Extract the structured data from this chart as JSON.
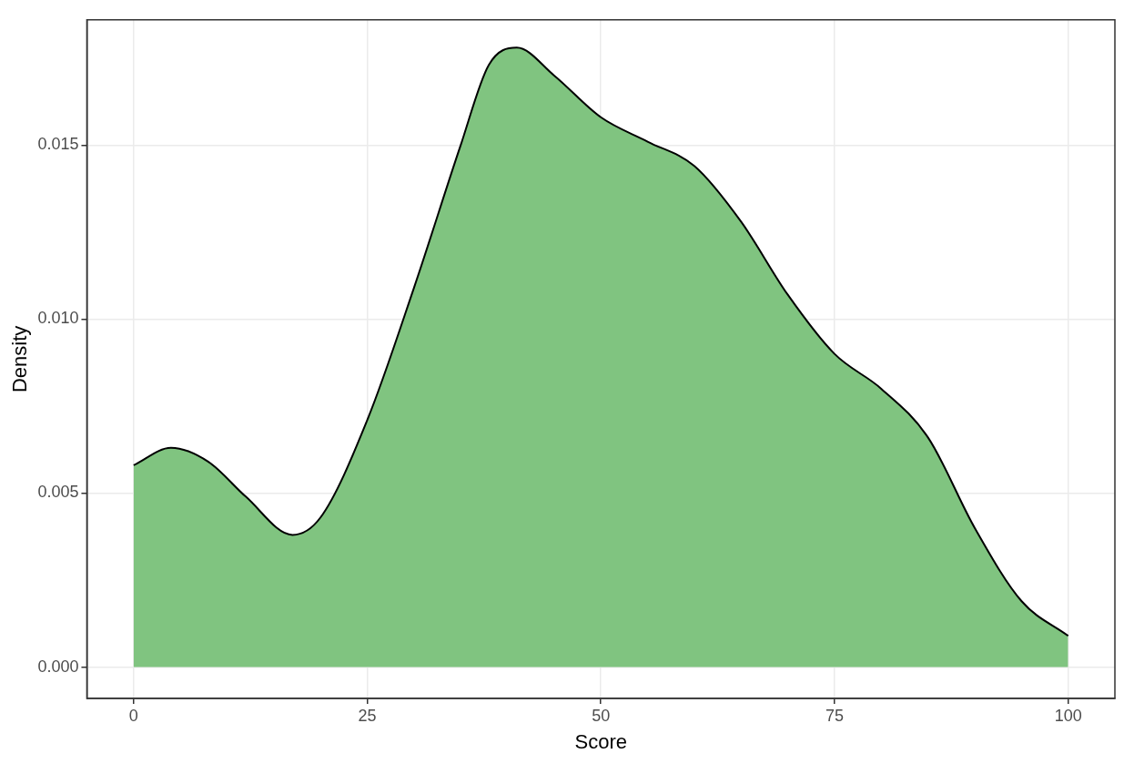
{
  "chart_data": {
    "type": "area",
    "xlabel": "Score",
    "ylabel": "Density",
    "x": [
      0,
      4,
      8,
      12,
      17,
      20,
      25,
      30,
      35,
      38,
      41,
      45,
      50,
      55,
      60,
      65,
      70,
      75,
      80,
      85,
      90,
      95,
      100
    ],
    "series": [
      {
        "color": "#80c480",
        "values": [
          0.0058,
          0.0063,
          0.0059,
          0.0049,
          0.0038,
          0.0043,
          0.0071,
          0.0109,
          0.015,
          0.0173,
          0.0178,
          0.017,
          0.0158,
          0.0151,
          0.0144,
          0.0128,
          0.0107,
          0.009,
          0.008,
          0.0066,
          0.004,
          0.0019,
          0.0009
        ]
      }
    ],
    "xlim": [
      -5,
      105
    ],
    "ylim": [
      -0.0009,
      0.0186
    ],
    "xticks": [
      0,
      25,
      50,
      75,
      100
    ],
    "yticks": [
      {
        "value": 0,
        "label": "0.000"
      },
      {
        "value": 0.005,
        "label": "0.005"
      },
      {
        "value": 0.01,
        "label": "0.010"
      },
      {
        "value": 0.015,
        "label": "0.015"
      }
    ],
    "grid": true,
    "legend": false
  }
}
